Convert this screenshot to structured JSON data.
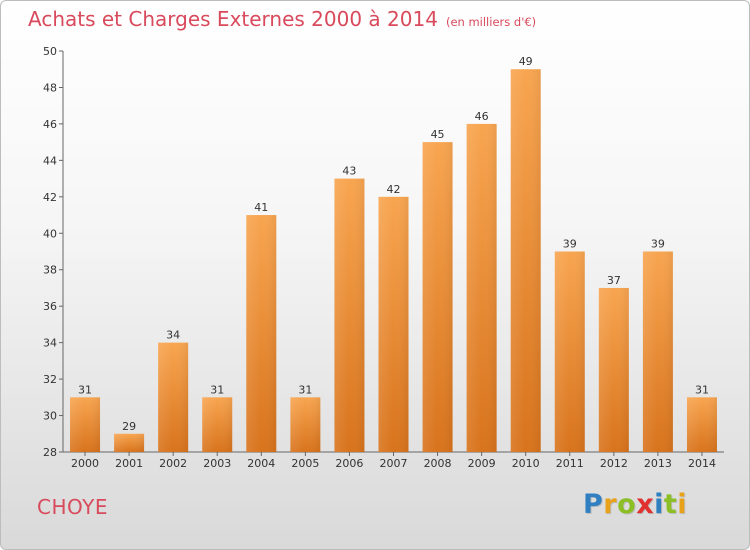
{
  "chart_data": {
    "type": "bar",
    "title": "Achats et Charges Externes 2000 à 2014",
    "subtitle": "(en milliers d'€)",
    "categories": [
      "2000",
      "2001",
      "2002",
      "2003",
      "2004",
      "2005",
      "2006",
      "2007",
      "2008",
      "2009",
      "2010",
      "2011",
      "2012",
      "2013",
      "2014"
    ],
    "values": [
      31,
      29,
      34,
      31,
      41,
      31,
      43,
      42,
      45,
      46,
      49,
      39,
      37,
      39,
      31
    ],
    "data_labels": [
      "31",
      "29",
      "34",
      "31",
      "41",
      "31",
      "43",
      "42",
      "45",
      "46",
      "49",
      "39",
      "37",
      "39",
      "31"
    ],
    "ylim": [
      28,
      50
    ],
    "yticks": [
      28,
      30,
      32,
      34,
      36,
      38,
      40,
      42,
      44,
      46,
      48,
      50
    ],
    "ytick_labels": [
      "28",
      "30",
      "32",
      "34",
      "36",
      "38",
      "40",
      "42",
      "44",
      "46",
      "48",
      "50"
    ],
    "grid": false,
    "bar_color": "#f28f2c"
  },
  "place_name": "CHOYE",
  "logo": {
    "letters": [
      "P",
      "r",
      "o",
      "x",
      "i",
      "t",
      "i"
    ],
    "colors": [
      "#2f7fc1",
      "#e8a21a",
      "#8cbf26",
      "#e0312f",
      "#2f7fc1",
      "#8cbf26",
      "#e8a21a"
    ]
  }
}
